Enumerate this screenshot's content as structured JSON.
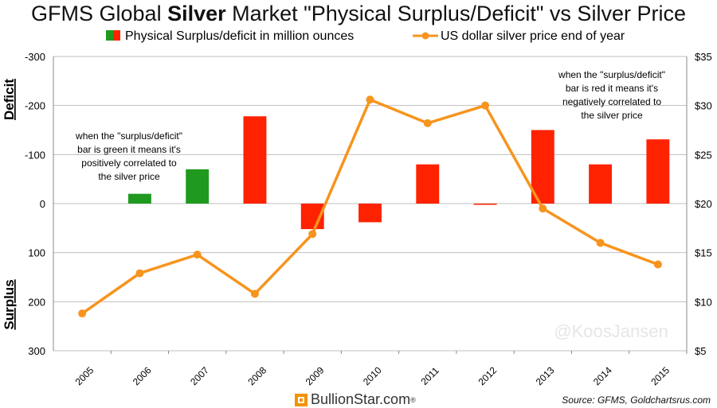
{
  "title": {
    "prefix": "GFMS Global ",
    "bold": "Silver",
    "suffix": " Market \"Physical Surplus/Deficit\" vs Silver Price"
  },
  "legend": {
    "bar": "Physical Surplus/deficit in million ounces",
    "line": "US dollar silver price end of year"
  },
  "axis_labels": {
    "deficit": "Deficit",
    "surplus": "Surplus"
  },
  "annotations": {
    "green_note": [
      "when the \"surplus/deficit\"",
      "bar is green it means it's",
      "positively correlated to",
      "the silver price"
    ],
    "red_note": [
      "when the \"surplus/deficit\"",
      "bar is red it means it's",
      "negatively correlated to",
      "the silver price"
    ]
  },
  "watermark": "@KoosJansen",
  "footer": {
    "logo": "BullionStar.com",
    "logo_mark": "®",
    "source": "Source: GFMS, Goldchartsrus.com"
  },
  "colors": {
    "green": "#1f9a1f",
    "red": "#ff2200",
    "line": "#f7941d",
    "grid": "#bfbfbf"
  },
  "chart_data": {
    "type": "bar+line",
    "categories": [
      "2005",
      "2006",
      "2007",
      "2008",
      "2009",
      "2010",
      "2011",
      "2012",
      "2013",
      "2014",
      "2015"
    ],
    "series": [
      {
        "name": "Physical Surplus/deficit in million ounces",
        "axis": "left",
        "values": [
          0,
          -20,
          -70,
          -178,
          52,
          38,
          -80,
          2,
          -150,
          -80,
          -131
        ],
        "colors": [
          "green",
          "green",
          "green",
          "red",
          "red",
          "red",
          "red",
          "red",
          "red",
          "red",
          "red"
        ]
      },
      {
        "name": "US dollar silver price end of year",
        "axis": "right",
        "values": [
          8.8,
          12.9,
          14.8,
          10.8,
          16.9,
          30.6,
          28.2,
          30.0,
          19.5,
          16.0,
          13.8
        ]
      }
    ],
    "left_axis": {
      "min": -300,
      "max": 300,
      "inverted": true,
      "ticks": [
        "-300",
        "-200",
        "-100",
        "0",
        "100",
        "200",
        "300"
      ],
      "tick_values": [
        -300,
        -200,
        -100,
        0,
        100,
        200,
        300
      ]
    },
    "right_axis": {
      "min": 5,
      "max": 35,
      "ticks": [
        "$5",
        "$10",
        "$15",
        "$20",
        "$25",
        "$30",
        "$35"
      ],
      "tick_values": [
        5,
        10,
        15,
        20,
        25,
        30,
        35
      ]
    },
    "grid": true,
    "legend_position": "top"
  }
}
